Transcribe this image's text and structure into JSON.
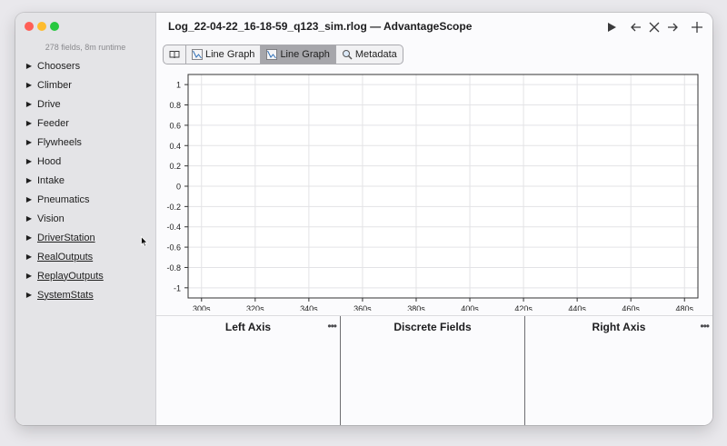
{
  "window": {
    "title": "Log_22-04-22_16-18-59_q123_sim.rlog — AdvantageScope"
  },
  "sidebar": {
    "field_count": "278 fields, 8m runtime",
    "items": [
      {
        "label": "Choosers",
        "underlined": false
      },
      {
        "label": "Climber",
        "underlined": false
      },
      {
        "label": "Drive",
        "underlined": false
      },
      {
        "label": "Feeder",
        "underlined": false
      },
      {
        "label": "Flywheels",
        "underlined": false
      },
      {
        "label": "Hood",
        "underlined": false
      },
      {
        "label": "Intake",
        "underlined": false
      },
      {
        "label": "Pneumatics",
        "underlined": false
      },
      {
        "label": "Vision",
        "underlined": false
      },
      {
        "label": "DriverStation",
        "underlined": true
      },
      {
        "label": "RealOutputs",
        "underlined": true
      },
      {
        "label": "ReplayOutputs",
        "underlined": true
      },
      {
        "label": "SystemStats",
        "underlined": true
      }
    ]
  },
  "titlebar_controls": [
    "play-icon",
    "arrow-left-icon",
    "close-icon",
    "arrow-right-icon",
    "plus-icon"
  ],
  "tabs": [
    {
      "label": "",
      "icon": "book-icon",
      "active": false
    },
    {
      "label": "Line Graph",
      "icon": "line-graph-icon",
      "active": false
    },
    {
      "label": "Line Graph",
      "icon": "line-graph-icon",
      "active": true
    },
    {
      "label": "Metadata",
      "icon": "magnifier-icon",
      "active": false
    }
  ],
  "chart_data": {
    "type": "line",
    "title": "",
    "xlabel": "",
    "ylabel": "",
    "series": [],
    "xlim": [
      295,
      485
    ],
    "ylim": [
      -1.1,
      1.1
    ],
    "x_ticks": [
      "300s",
      "320s",
      "340s",
      "360s",
      "380s",
      "400s",
      "420s",
      "440s",
      "460s",
      "480s"
    ],
    "x_tick_values": [
      300,
      320,
      340,
      360,
      380,
      400,
      420,
      440,
      460,
      480
    ],
    "y_ticks": [
      "1",
      "0.8",
      "0.6",
      "0.4",
      "0.2",
      "0",
      "-0.2",
      "-0.4",
      "-0.6",
      "-0.8",
      "-1"
    ],
    "y_tick_values": [
      1,
      0.8,
      0.6,
      0.4,
      0.2,
      0,
      -0.2,
      -0.4,
      -0.6,
      -0.8,
      -1
    ],
    "grid": true,
    "colors": {
      "grid": "#e3e3e6",
      "axis": "#333333",
      "tick_text": "#222222"
    }
  },
  "panels": {
    "left_axis": "Left Axis",
    "discrete_fields": "Discrete Fields",
    "right_axis": "Right Axis",
    "more_label": "•••"
  }
}
